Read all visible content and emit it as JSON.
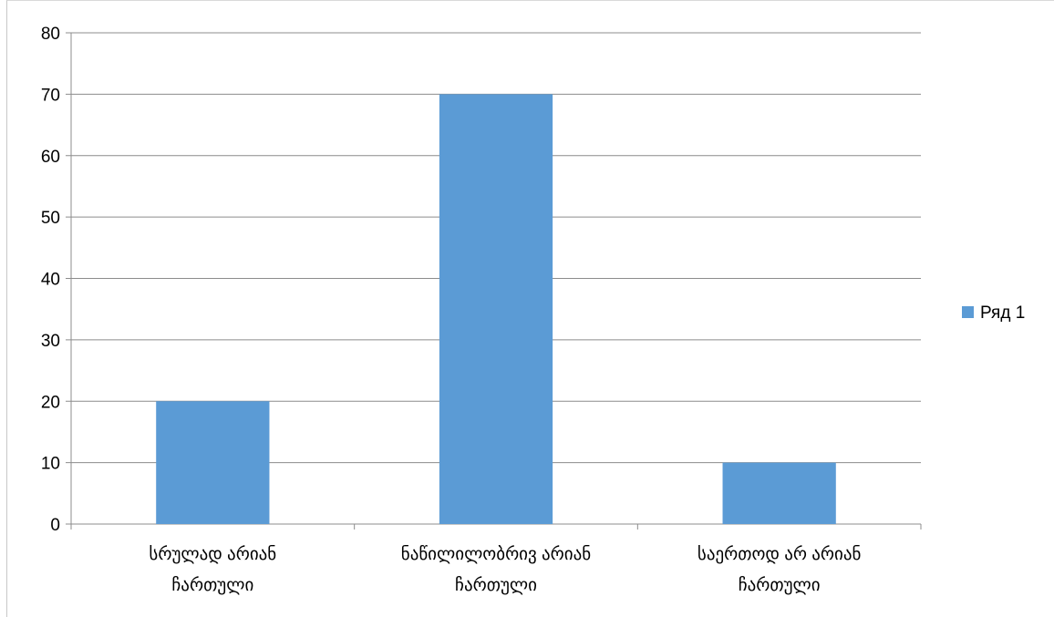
{
  "chart_data": {
    "type": "bar",
    "categories": [
      [
        "სრულად არიან",
        "ჩართული"
      ],
      [
        "ნაწილილობრივ  არიან",
        "ჩართული"
      ],
      [
        "საერთოდ არ არიან",
        "ჩართული"
      ]
    ],
    "series": [
      {
        "name": "Ряд 1",
        "values": [
          20,
          70,
          10
        ],
        "color": "#5b9bd5"
      }
    ],
    "ylim": [
      0,
      80
    ],
    "yticks": [
      "0",
      "10",
      "20",
      "30",
      "40",
      "50",
      "60",
      "70",
      "80"
    ],
    "grid": true,
    "legend": "right"
  }
}
